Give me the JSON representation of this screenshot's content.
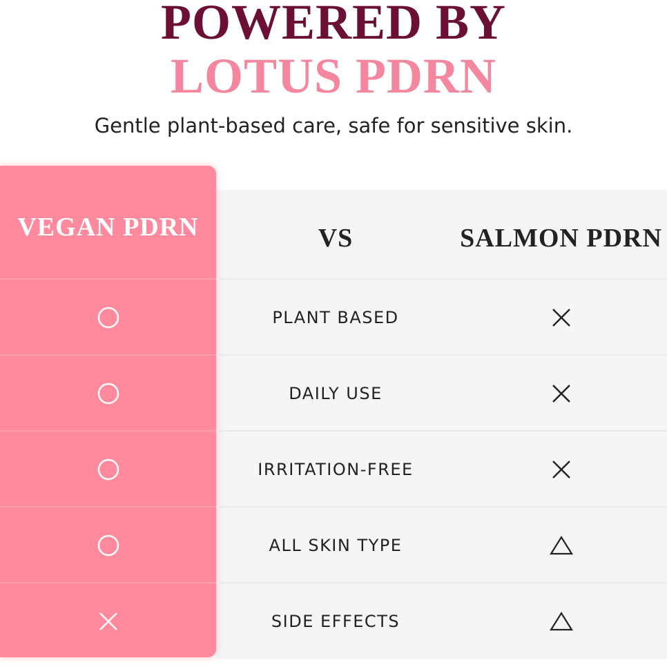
{
  "heading": {
    "line1": "POWERED BY",
    "line2": "LOTUS PDRN",
    "subtitle": "Gentle plant-based care, safe for sensitive skin."
  },
  "colors": {
    "maroon": "#6b0f35",
    "pink_title": "#f4879e",
    "pink_column": "#ff8a9e",
    "table_bg": "#f5f5f5"
  },
  "table": {
    "headers": {
      "left": "VEGAN PDRN",
      "middle": "VS",
      "right": "SALMON PDRN"
    },
    "rows": [
      {
        "feature": "PLANT BASED",
        "vegan": "circle",
        "salmon": "cross"
      },
      {
        "feature": "DAILY USE",
        "vegan": "circle",
        "salmon": "cross"
      },
      {
        "feature": "IRRITATION-FREE",
        "vegan": "circle",
        "salmon": "cross"
      },
      {
        "feature": "ALL SKIN TYPE",
        "vegan": "circle",
        "salmon": "triangle"
      },
      {
        "feature": "SIDE EFFECTS",
        "vegan": "cross",
        "salmon": "triangle"
      }
    ]
  }
}
